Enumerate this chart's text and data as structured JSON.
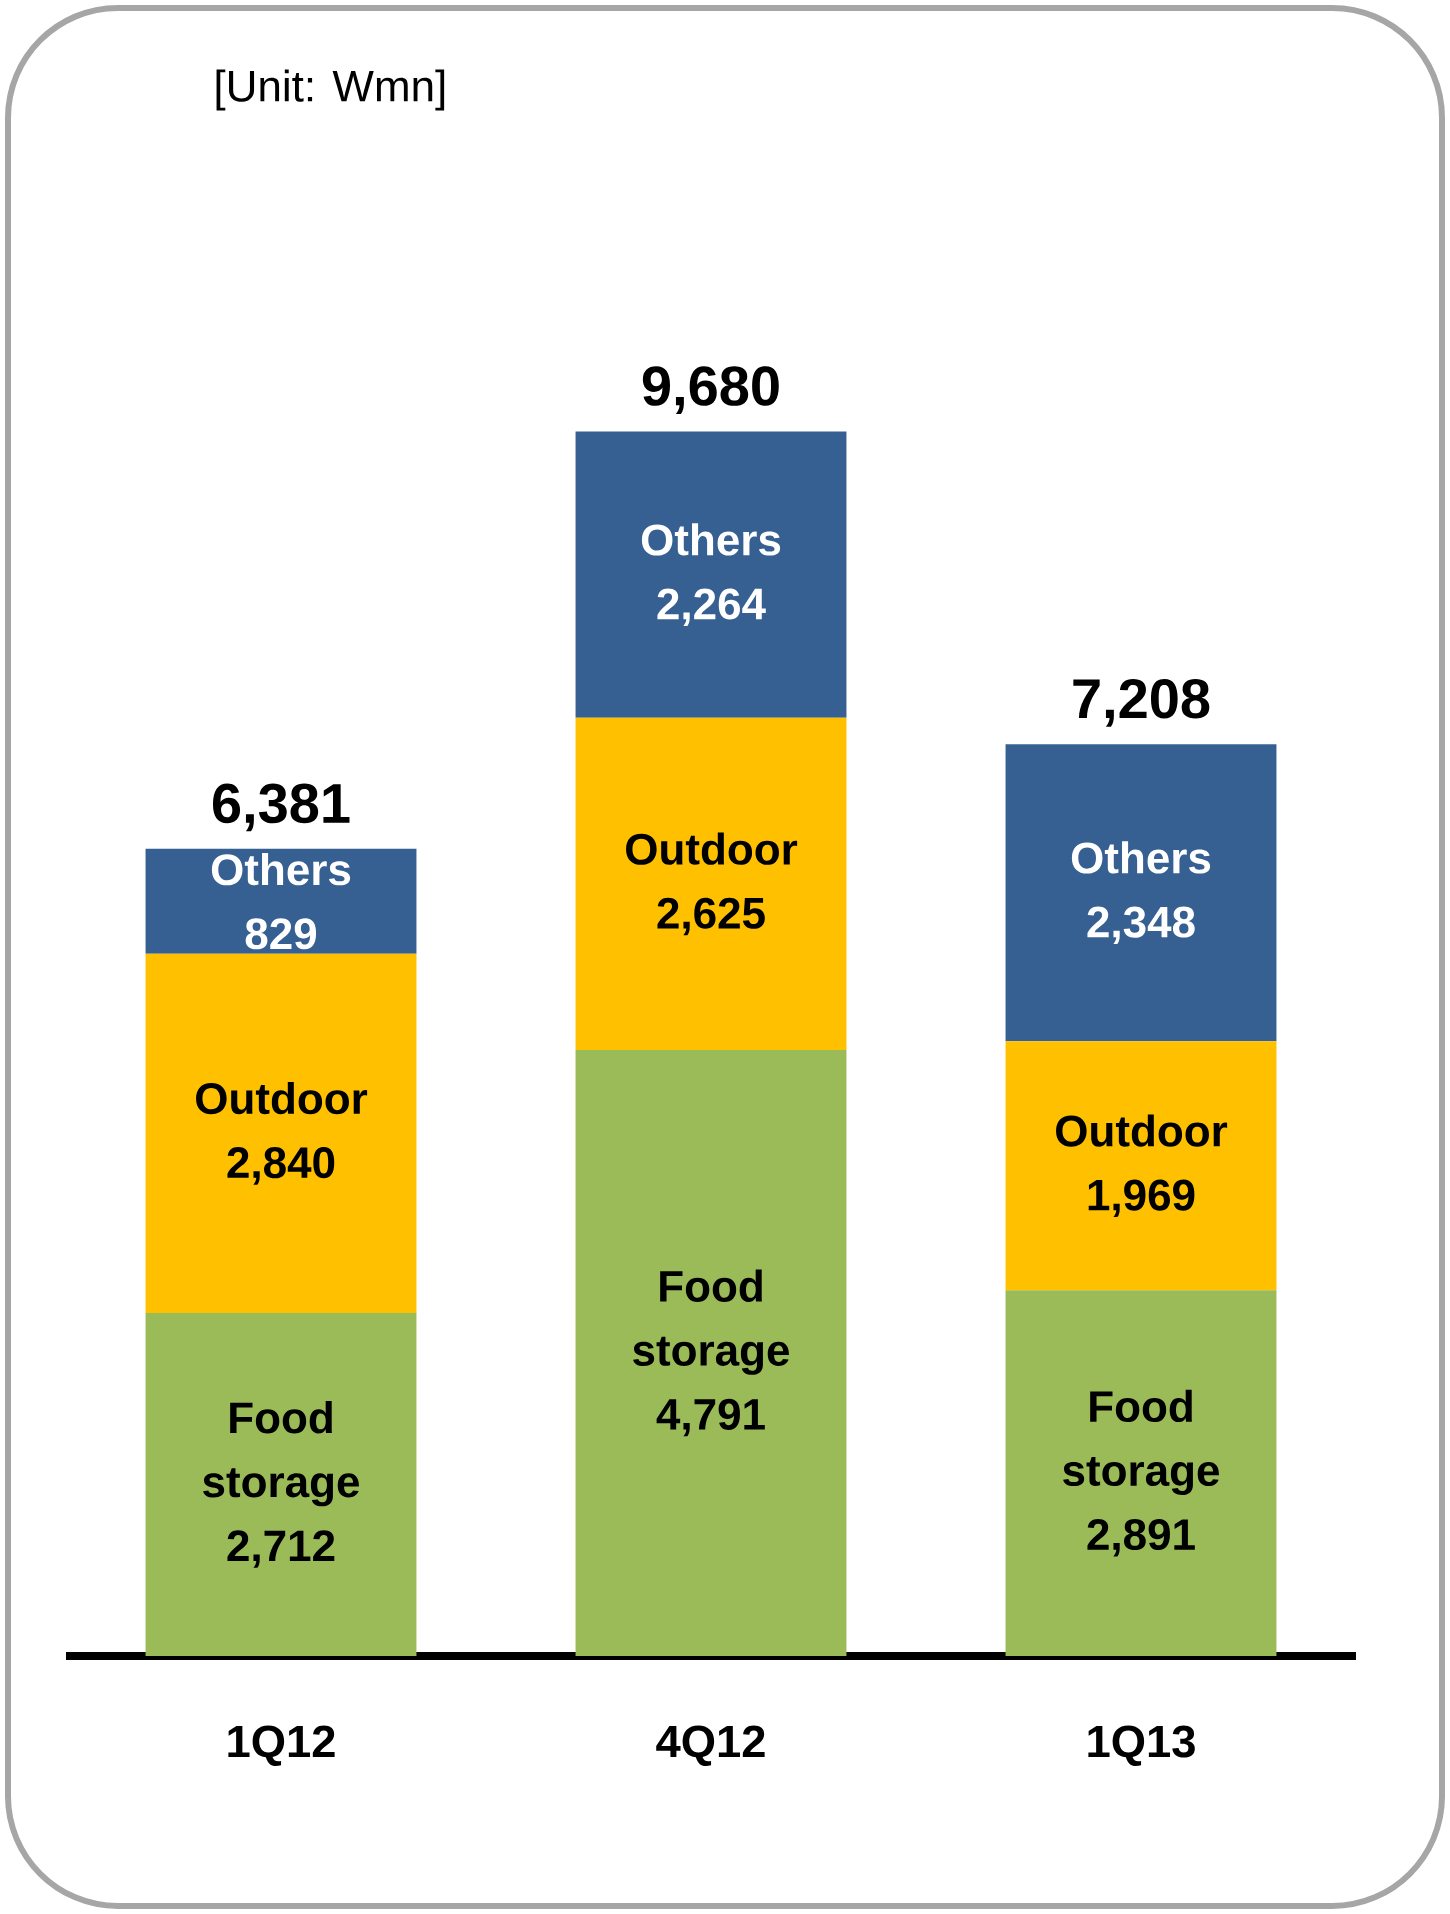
{
  "chart_data": {
    "type": "bar",
    "stacked": true,
    "data_labels": true,
    "categories": [
      "1Q12",
      "4Q12",
      "1Q13"
    ],
    "series": [
      {
        "name": "Food storage",
        "color": "#9bbb59",
        "values": [
          2712,
          4791,
          2891
        ],
        "value_labels": [
          "2,712",
          "4,791",
          "2,891"
        ]
      },
      {
        "name": "Outdoor",
        "color": "#ffc000",
        "values": [
          2840,
          2625,
          1969
        ],
        "value_labels": [
          "2,840",
          "2,625",
          "1,969"
        ]
      },
      {
        "name": "Others",
        "color": "#376092",
        "values": [
          829,
          2264,
          2348
        ],
        "value_labels": [
          "829",
          "2,264",
          "2,348"
        ]
      }
    ],
    "totals": [
      "6,381",
      "9,680",
      "7,208"
    ],
    "annotations": [
      "[Unit: Wmn]"
    ]
  }
}
